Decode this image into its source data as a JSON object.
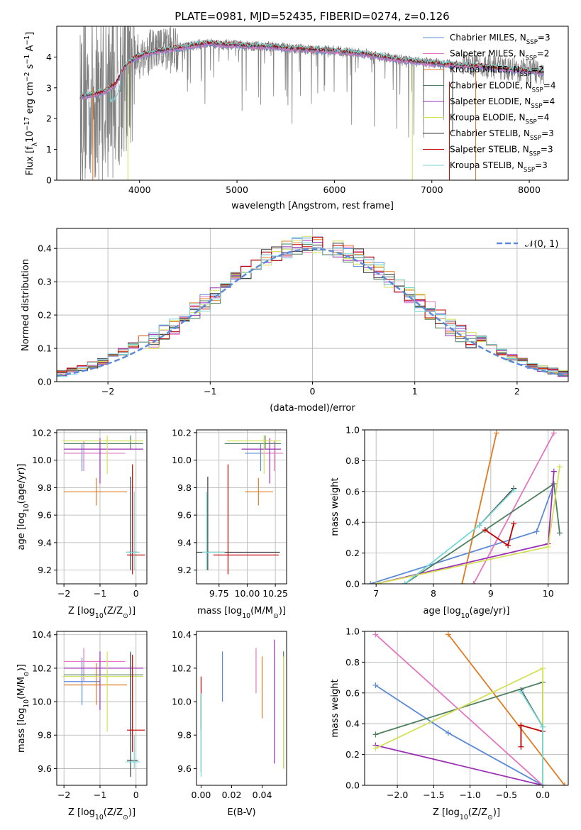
{
  "figure": {
    "title": "PLATE=0981, MJD=52435, FIBERID=0274, z=0.126"
  },
  "chart_data": [
    {
      "id": "spectrum",
      "type": "line",
      "xlabel": "wavelength [Angstrom, rest frame]",
      "ylabel": "Flux [f_λ 10^-17 erg cm^-2 s^-1 A^-1]",
      "xlim": [
        3150,
        8400
      ],
      "ylim": [
        0,
        5
      ],
      "xticks": [
        4000,
        5000,
        6000,
        7000,
        8000
      ],
      "yticks": [
        0,
        1,
        2,
        3,
        4
      ],
      "grid": false,
      "legend_position": "top-right",
      "data_color": "#808080",
      "series": [
        {
          "name": "Chabrier MILES, N_SSP=3",
          "color": "#5b8bd8"
        },
        {
          "name": "Salpeter MILES, N_SSP=2",
          "color": "#e377c2"
        },
        {
          "name": "Kroupa MILES, N_SSP=2",
          "color": "#e07b22"
        },
        {
          "name": "Chabrier ELODIE, N_SSP=4",
          "color": "#4f7f5f"
        },
        {
          "name": "Salpeter ELODIE, N_SSP=4",
          "color": "#9b30b5"
        },
        {
          "name": "Kroupa ELODIE, N_SSP=4",
          "color": "#d4e157"
        },
        {
          "name": "Chabrier STELIB, N_SSP=3",
          "color": "#3a3a3a"
        },
        {
          "name": "Salpeter STELIB, N_SSP=3",
          "color": "#c00000"
        },
        {
          "name": "Kroupa STELIB, N_SSP=3",
          "color": "#76d7d5"
        }
      ],
      "continuum": {
        "x": [
          3380,
          3450,
          3550,
          3650,
          3750,
          3850,
          3950,
          4050,
          4200,
          4300,
          4500,
          4700,
          4900,
          5000,
          5100,
          5300,
          5500,
          5700,
          6000,
          6300,
          6500,
          6700,
          7000,
          7200,
          7500,
          7800,
          8000,
          8150
        ],
        "y": [
          2.7,
          2.75,
          2.8,
          2.9,
          3.1,
          3.7,
          3.95,
          4.1,
          4.2,
          4.25,
          4.35,
          4.45,
          4.4,
          4.4,
          4.35,
          4.35,
          4.3,
          4.25,
          4.2,
          4.1,
          4.0,
          3.9,
          3.8,
          3.75,
          3.7,
          3.6,
          3.55,
          3.5
        ]
      }
    },
    {
      "id": "residuals",
      "type": "bar",
      "xlabel": "(data-model)/error",
      "ylabel": "Normed distribution",
      "xlim": [
        -2.5,
        2.5
      ],
      "ylim": [
        0,
        0.46
      ],
      "xticks": [
        -2,
        -1,
        0,
        1,
        2
      ],
      "yticks": [
        0.0,
        0.1,
        0.2,
        0.3,
        0.4
      ],
      "grid": true,
      "legend_position": "top-right",
      "reference_curve": {
        "name": "N(0,1)",
        "mean": 0,
        "sigma": 1,
        "color": "#5b8bd8"
      },
      "bin_width": 0.1
    },
    {
      "id": "age-vs-Z",
      "type": "scatter",
      "xlabel": "Z [log10(Z/Z⊙)]",
      "ylabel": "age [log10(age/yr)]",
      "xlim": [
        -2.2,
        0.3
      ],
      "ylim": [
        9.1,
        10.22
      ],
      "xticks": [
        -2,
        -1,
        0
      ],
      "yticks": [
        9.2,
        9.4,
        9.6,
        9.8,
        10.0,
        10.2
      ],
      "grid": true
    },
    {
      "id": "age-vs-mass",
      "type": "scatter",
      "xlabel": "mass [log10(M/M⊙)]",
      "ylabel": "",
      "xlim": [
        9.55,
        10.35
      ],
      "ylim": [
        9.1,
        10.22
      ],
      "xticks": [
        9.75,
        10.0,
        10.25
      ],
      "yticks": [
        9.2,
        9.4,
        9.6,
        9.8,
        10.0,
        10.2
      ],
      "grid": true
    },
    {
      "id": "weight-vs-age",
      "type": "line",
      "xlabel": "age [log10(age/yr)]",
      "ylabel": "mass weight",
      "xlim": [
        6.8,
        10.35
      ],
      "ylim": [
        0,
        1
      ],
      "xticks": [
        7,
        8,
        9,
        10
      ],
      "yticks": [
        0.0,
        0.2,
        0.4,
        0.6,
        0.8,
        1.0
      ],
      "grid": true
    },
    {
      "id": "mass-vs-Z",
      "type": "scatter",
      "xlabel": "Z [log10(Z/Z⊙)]",
      "ylabel": "mass [log10(M/M⊙)]",
      "xlim": [
        -2.2,
        0.3
      ],
      "ylim": [
        9.5,
        10.42
      ],
      "xticks": [
        -2,
        -1,
        0
      ],
      "yticks": [
        9.6,
        9.8,
        10.0,
        10.2,
        10.4
      ],
      "grid": true
    },
    {
      "id": "mass-vs-ebv",
      "type": "scatter",
      "xlabel": "E(B-V)",
      "ylabel": "",
      "xlim": [
        -0.003,
        0.056
      ],
      "ylim": [
        9.5,
        10.42
      ],
      "xticks": [
        0.0,
        0.02,
        0.04
      ],
      "yticks": [
        9.6,
        9.8,
        10.0,
        10.2,
        10.4
      ],
      "grid": false
    },
    {
      "id": "weight-vs-Z",
      "type": "line",
      "xlabel": "Z [log10(Z/Z⊙)]",
      "ylabel": "mass weight",
      "xlim": [
        -2.45,
        0.35
      ],
      "ylim": [
        0,
        1
      ],
      "xticks": [
        -2.0,
        -1.5,
        -1.0,
        -0.5,
        0.0
      ],
      "yticks": [
        0.0,
        0.2,
        0.4,
        0.6,
        0.8,
        1.0
      ],
      "grid": true
    }
  ],
  "models": [
    {
      "name": "Chabrier MILES",
      "color": "#5b8bd8",
      "age_points": [
        [
          6.9,
          0.0
        ],
        [
          9.8,
          0.34
        ],
        [
          10.1,
          0.65
        ]
      ],
      "z_points": [
        [
          -2.3,
          0.65
        ],
        [
          -1.3,
          0.34
        ],
        [
          0.0,
          0.0
        ]
      ],
      "avg": {
        "Z": -1.5,
        "age": 10.05,
        "mass": 10.12,
        "ebv": 0.014
      },
      "err": {
        "Z": [
          -2.0,
          -1.0
        ],
        "age": [
          9.92,
          10.12
        ],
        "mass": [
          9.98,
          10.26
        ],
        "ebv_mass": [
          10.0,
          10.3
        ]
      }
    },
    {
      "name": "Salpeter MILES",
      "color": "#e377c2",
      "age_points": [
        [
          8.7,
          0.0
        ],
        [
          10.1,
          0.98
        ]
      ],
      "z_points": [
        [
          -2.3,
          0.98
        ],
        [
          0.0,
          0.0
        ]
      ],
      "avg": {
        "Z": -1.45,
        "age": 10.05,
        "mass": 10.24,
        "ebv": 0.036
      },
      "err": {
        "Z": [
          -2.0,
          -0.3
        ],
        "age": [
          9.92,
          10.14
        ],
        "mass": [
          10.12,
          10.32
        ],
        "ebv_mass": [
          10.05,
          10.32
        ]
      }
    },
    {
      "name": "Kroupa MILES",
      "color": "#e07b22",
      "age_points": [
        [
          8.5,
          0.0
        ],
        [
          9.1,
          0.98
        ]
      ],
      "z_points": [
        [
          -1.3,
          0.98
        ],
        [
          0.3,
          0.0
        ]
      ],
      "avg": {
        "Z": -1.1,
        "age": 9.77,
        "mass": 10.1,
        "ebv": 0.04
      },
      "err": {
        "Z": [
          -2.0,
          -0.25
        ],
        "age": [
          9.67,
          9.87
        ],
        "mass": [
          9.98,
          10.23
        ],
        "ebv_mass": [
          9.9,
          10.27
        ]
      }
    },
    {
      "name": "Chabrier ELODIE",
      "color": "#4f7f5f",
      "age_points": [
        [
          7.5,
          0.0
        ],
        [
          10.1,
          0.65
        ],
        [
          10.2,
          0.33
        ]
      ],
      "z_points": [
        [
          -2.3,
          0.33
        ],
        [
          0.0,
          0.67
        ],
        [
          0.0,
          0.0
        ]
      ],
      "avg": {
        "Z": -0.15,
        "age": 10.12,
        "mass": 10.16,
        "ebv": 0.054
      },
      "err": {
        "Z": [
          -2.0,
          0.2
        ],
        "age": [
          10.08,
          10.18
        ],
        "mass": [
          9.8,
          10.3
        ],
        "ebv_mass": [
          9.6,
          10.3
        ]
      }
    },
    {
      "name": "Salpeter ELODIE",
      "color": "#9b30b5",
      "age_points": [
        [
          7.0,
          0.0
        ],
        [
          10.0,
          0.26
        ],
        [
          10.1,
          0.73
        ]
      ],
      "z_points": [
        [
          -2.3,
          0.26
        ],
        [
          0.0,
          0.0
        ]
      ],
      "avg": {
        "Z": -1.0,
        "age": 10.08,
        "mass": 10.2,
        "ebv": 0.048
      },
      "err": {
        "Z": [
          -2.0,
          0.2
        ],
        "age": [
          9.83,
          10.16
        ],
        "mass": [
          9.95,
          10.3
        ],
        "ebv_mass": [
          9.63,
          10.37
        ]
      }
    },
    {
      "name": "Kroupa ELODIE",
      "color": "#d4e157",
      "age_points": [
        [
          7.0,
          0.0
        ],
        [
          10.0,
          0.24
        ],
        [
          10.2,
          0.76
        ]
      ],
      "z_points": [
        [
          -2.3,
          0.24
        ],
        [
          0.0,
          0.76
        ],
        [
          0.0,
          0.0
        ]
      ],
      "avg": {
        "Z": -0.8,
        "age": 10.14,
        "mass": 10.15,
        "ebv": 0.054
      },
      "err": {
        "Z": [
          -2.05,
          0.2
        ],
        "age": [
          9.9,
          10.18
        ],
        "mass": [
          9.82,
          10.3
        ],
        "ebv_mass": [
          9.6,
          10.27
        ]
      }
    },
    {
      "name": "Chabrier STELIB",
      "color": "#3a3a3a",
      "age_points": [
        [
          8.8,
          0.38
        ],
        [
          9.4,
          0.62
        ]
      ],
      "z_points": [
        [
          -0.3,
          0.62
        ],
        [
          0.0,
          0.38
        ]
      ],
      "avg": {
        "Z": -0.15,
        "age": 9.33,
        "mass": 9.65,
        "ebv": 0.0
      },
      "err": {
        "Z": [
          -0.25,
          0.05
        ],
        "age": [
          9.2,
          9.88
        ],
        "mass": [
          9.55,
          10.29
        ],
        "ebv_mass": [
          9.58,
          10.05
        ]
      }
    },
    {
      "name": "Salpeter STELIB",
      "color": "#c00000",
      "age_points": [
        [
          8.9,
          0.35
        ],
        [
          9.3,
          0.25
        ],
        [
          9.4,
          0.39
        ]
      ],
      "z_points": [
        [
          -0.3,
          0.25
        ],
        [
          -0.3,
          0.39
        ],
        [
          0.0,
          0.35
        ]
      ],
      "avg": {
        "Z": -0.1,
        "age": 9.31,
        "mass": 9.83,
        "ebv": 0.0
      },
      "err": {
        "Z": [
          -0.25,
          0.25
        ],
        "age": [
          9.17,
          9.97
        ],
        "mass": [
          9.7,
          10.28
        ],
        "ebv_mass": [
          9.83,
          10.15
        ]
      }
    },
    {
      "name": "Kroupa STELIB",
      "color": "#76d7d5",
      "age_points": [
        [
          7.5,
          0.0
        ],
        [
          8.8,
          0.38
        ],
        [
          9.4,
          0.61
        ]
      ],
      "z_points": [
        [
          -0.3,
          0.61
        ],
        [
          0.0,
          0.38
        ],
        [
          0.0,
          0.0
        ]
      ],
      "avg": {
        "Z": -0.05,
        "age": 9.33,
        "mass": 9.64,
        "ebv": 0.0
      },
      "err": {
        "Z": [
          -0.28,
          0.1
        ],
        "age": [
          9.2,
          9.77
        ],
        "mass": [
          9.6,
          9.8
        ],
        "ebv_mass": [
          9.55,
          10.05
        ]
      }
    }
  ]
}
